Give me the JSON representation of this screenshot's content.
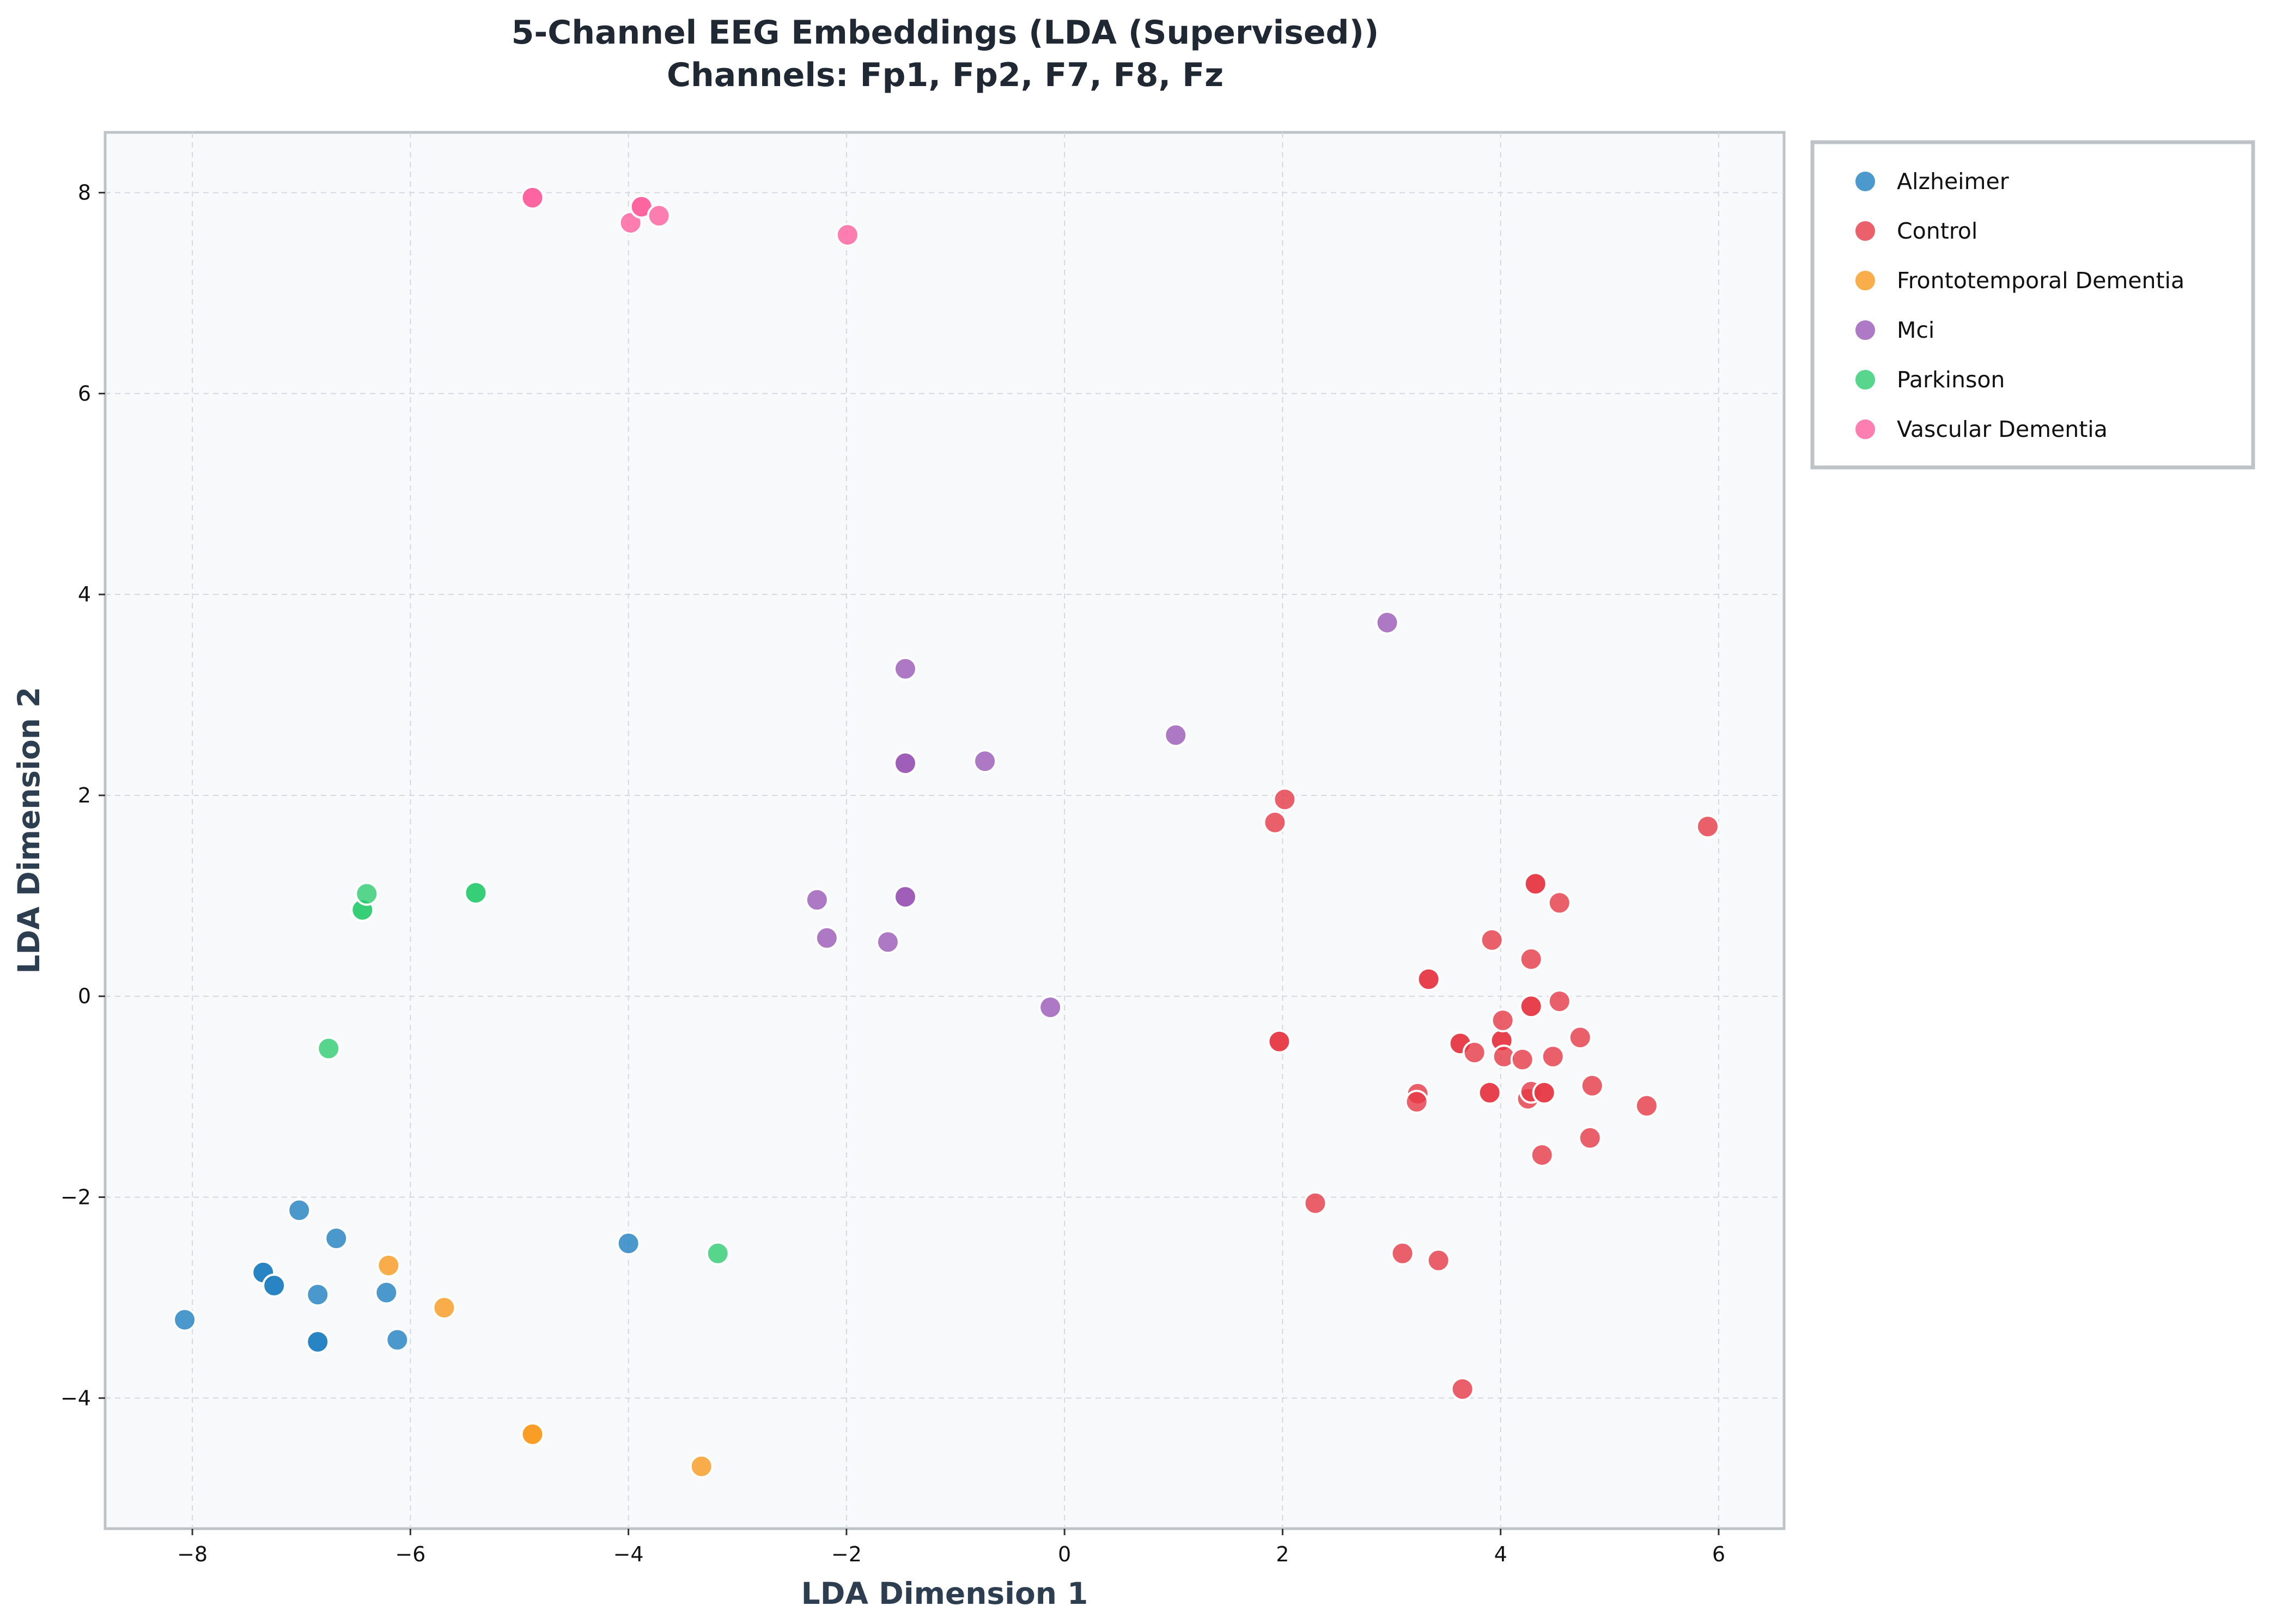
{
  "chart_data": {
    "type": "scatter",
    "title": "5-Channel EEG Embeddings (LDA (Supervised))",
    "subtitle": "Channels: Fp1, Fp2, F7, F8, Fz",
    "xlabel": "LDA Dimension 1",
    "ylabel": "LDA Dimension 2",
    "xlim": [
      -8.8,
      6.6
    ],
    "ylim": [
      -5.3,
      8.6
    ],
    "xticks": [
      -8,
      -6,
      -4,
      -2,
      0,
      2,
      4,
      6
    ],
    "xtick_labels": [
      "−8",
      "−6",
      "−4",
      "−2",
      "0",
      "2",
      "4",
      "6"
    ],
    "yticks": [
      -4,
      -2,
      0,
      2,
      4,
      6,
      8
    ],
    "ytick_labels": [
      "−4",
      "−2",
      "0",
      "2",
      "4",
      "6",
      "8"
    ],
    "grid": true,
    "legend_position": "outside-upper-right",
    "series": [
      {
        "name": "Alzheimer",
        "color": "#1f7fc0",
        "points": [
          [
            -8.07,
            -3.22
          ],
          [
            -7.35,
            -2.75
          ],
          [
            -7.35,
            -2.75
          ],
          [
            -7.25,
            -2.88
          ],
          [
            -7.25,
            -2.88
          ],
          [
            -7.02,
            -2.13
          ],
          [
            -6.85,
            -2.97
          ],
          [
            -6.85,
            -3.44
          ],
          [
            -6.85,
            -3.44
          ],
          [
            -6.68,
            -2.41
          ],
          [
            -6.22,
            -2.95
          ],
          [
            -6.12,
            -3.42
          ],
          [
            -4.0,
            -2.46
          ]
        ]
      },
      {
        "name": "Control",
        "color": "#e63946",
        "points": [
          [
            1.93,
            1.73
          ],
          [
            2.02,
            1.96
          ],
          [
            1.97,
            -0.45
          ],
          [
            1.97,
            -0.45
          ],
          [
            2.3,
            -2.06
          ],
          [
            3.1,
            -2.56
          ],
          [
            3.24,
            -0.97
          ],
          [
            3.23,
            -1.05
          ],
          [
            3.34,
            0.17
          ],
          [
            3.34,
            0.17
          ],
          [
            3.43,
            -2.63
          ],
          [
            3.63,
            -0.47
          ],
          [
            3.63,
            -0.47
          ],
          [
            3.65,
            -3.91
          ],
          [
            3.76,
            -0.56
          ],
          [
            3.9,
            -0.96
          ],
          [
            3.9,
            -0.96
          ],
          [
            3.92,
            0.56
          ],
          [
            4.01,
            -0.44
          ],
          [
            4.01,
            -0.44
          ],
          [
            4.02,
            -0.24
          ],
          [
            4.03,
            -0.6
          ],
          [
            4.2,
            -0.63
          ],
          [
            4.25,
            -1.02
          ],
          [
            4.28,
            -0.95
          ],
          [
            4.28,
            -0.1
          ],
          [
            4.28,
            -0.1
          ],
          [
            4.28,
            0.37
          ],
          [
            4.32,
            1.12
          ],
          [
            4.32,
            1.12
          ],
          [
            4.38,
            -1.58
          ],
          [
            4.4,
            -0.96
          ],
          [
            4.4,
            -0.96
          ],
          [
            4.48,
            -0.6
          ],
          [
            4.54,
            -0.05
          ],
          [
            4.54,
            0.93
          ],
          [
            4.73,
            -0.41
          ],
          [
            4.82,
            -1.41
          ],
          [
            4.84,
            -0.89
          ],
          [
            5.34,
            -1.09
          ],
          [
            5.9,
            1.69
          ]
        ]
      },
      {
        "name": "Frontotemporal Dementia",
        "color": "#f79a1e",
        "points": [
          [
            -6.2,
            -2.68
          ],
          [
            -5.69,
            -3.1
          ],
          [
            -4.88,
            -4.36
          ],
          [
            -4.88,
            -4.36
          ],
          [
            -3.33,
            -4.68
          ]
        ]
      },
      {
        "name": "Mci",
        "color": "#9b59b6",
        "points": [
          [
            -2.27,
            0.96
          ],
          [
            -2.18,
            0.58
          ],
          [
            -1.62,
            0.54
          ],
          [
            -1.46,
            3.26
          ],
          [
            -1.46,
            2.32
          ],
          [
            -1.46,
            2.32
          ],
          [
            -1.46,
            0.99
          ],
          [
            -1.46,
            0.99
          ],
          [
            -0.73,
            2.34
          ],
          [
            -0.13,
            -0.11
          ],
          [
            1.02,
            2.6
          ],
          [
            2.96,
            3.72
          ]
        ]
      },
      {
        "name": "Parkinson",
        "color": "#2ecc71",
        "points": [
          [
            -6.75,
            -0.52
          ],
          [
            -6.44,
            0.86
          ],
          [
            -6.44,
            0.86
          ],
          [
            -6.4,
            1.02
          ],
          [
            -5.4,
            1.03
          ],
          [
            -5.4,
            1.03
          ],
          [
            -3.18,
            -2.56
          ]
        ]
      },
      {
        "name": "Vascular Dementia",
        "color": "#fd5f9e",
        "points": [
          [
            -4.88,
            7.95
          ],
          [
            -4.88,
            7.95
          ],
          [
            -3.98,
            7.7
          ],
          [
            -3.88,
            7.86
          ],
          [
            -3.88,
            7.86
          ],
          [
            -3.72,
            7.77
          ],
          [
            -1.99,
            7.58
          ]
        ]
      }
    ]
  }
}
